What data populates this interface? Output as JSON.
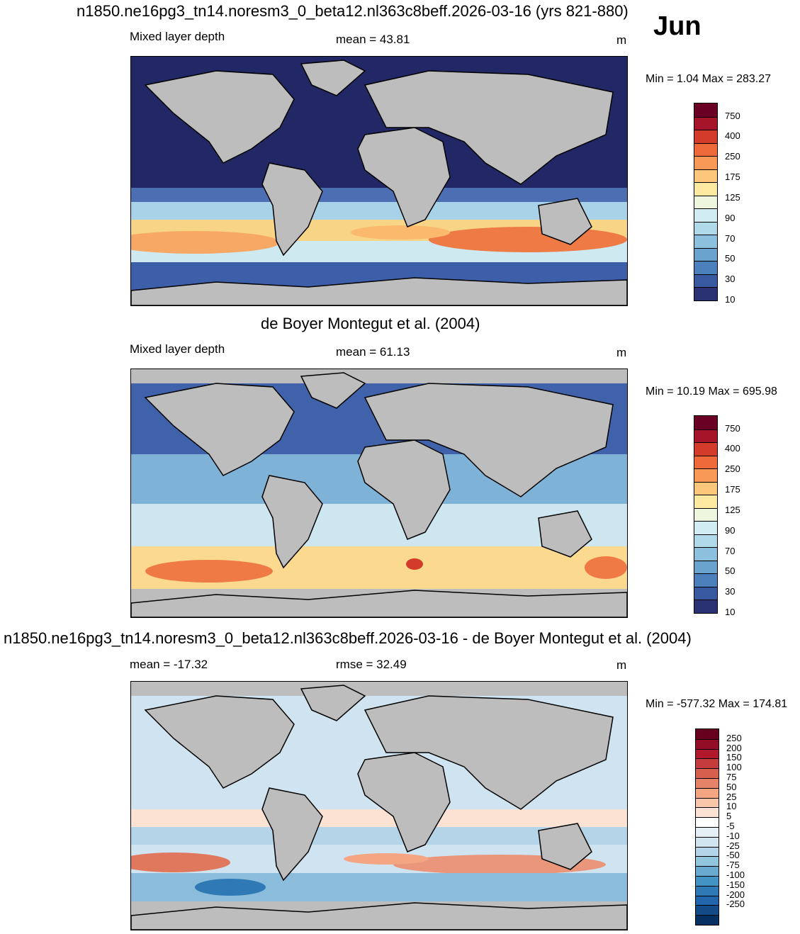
{
  "title": "n1850.ne16pg3_tn14.noresm3_0_beta12.nl363c8beff.2026-03-16 (yrs 821-880)",
  "month": "Jun",
  "panels": [
    {
      "id": "model",
      "heading": "",
      "left_label": "Mixed layer depth",
      "center_label": "mean =  43.81",
      "units": "m",
      "minmax": "Min =   1.04 Max = 283.27",
      "colorbar": {
        "colors": [
          "#6a0124",
          "#a5142a",
          "#d33b2b",
          "#ee6a3b",
          "#f99957",
          "#fcc67b",
          "#fde9a0",
          "#eef6e0",
          "#d2ecf3",
          "#b0d9ea",
          "#8cc0dd",
          "#6aa3ce",
          "#4c80bd",
          "#38589f",
          "#2b3274"
        ],
        "labels": [
          "750",
          "400",
          "250",
          "175",
          "125",
          "90",
          "70",
          "50",
          "30",
          "10"
        ]
      }
    },
    {
      "id": "obs",
      "heading": "de Boyer Montegut et al. (2004)",
      "left_label": "Mixed layer depth",
      "center_label": "mean =  61.13",
      "units": "m",
      "minmax": "Min =  10.19 Max = 695.98",
      "colorbar": {
        "colors": [
          "#6a0124",
          "#a5142a",
          "#d33b2b",
          "#ee6a3b",
          "#f99957",
          "#fcc67b",
          "#fde9a0",
          "#eef6e0",
          "#d2ecf3",
          "#b0d9ea",
          "#8cc0dd",
          "#6aa3ce",
          "#4c80bd",
          "#38589f",
          "#2b3274"
        ],
        "labels": [
          "750",
          "400",
          "250",
          "175",
          "125",
          "90",
          "70",
          "50",
          "30",
          "10"
        ]
      }
    },
    {
      "id": "diff",
      "heading": "n1850.ne16pg3_tn14.noresm3_0_beta12.nl363c8beff.2026-03-16 - de Boyer Montegut et al. (2004)",
      "left_label": "mean = -17.32",
      "center_label": "rmse =  32.49",
      "units": "m",
      "minmax": "Min = -577.32 Max = 174.81",
      "colorbar": {
        "colors": [
          "#67001f",
          "#930d27",
          "#b2182b",
          "#c43c3c",
          "#d6604d",
          "#e58368",
          "#f4a582",
          "#f8c6a9",
          "#fbe2d3",
          "#ffffff",
          "#e5eff6",
          "#d1e5f0",
          "#b4d4e8",
          "#92c5de",
          "#6aaad0",
          "#4393c3",
          "#2f79b5",
          "#2166ac",
          "#134b87",
          "#053061"
        ],
        "labels": [
          "250",
          "200",
          "150",
          "100",
          "75",
          "50",
          "25",
          "10",
          "5",
          "-5",
          "-10",
          "-25",
          "-50",
          "-75",
          "-100",
          "-150",
          "-200",
          "-250"
        ]
      }
    }
  ]
}
